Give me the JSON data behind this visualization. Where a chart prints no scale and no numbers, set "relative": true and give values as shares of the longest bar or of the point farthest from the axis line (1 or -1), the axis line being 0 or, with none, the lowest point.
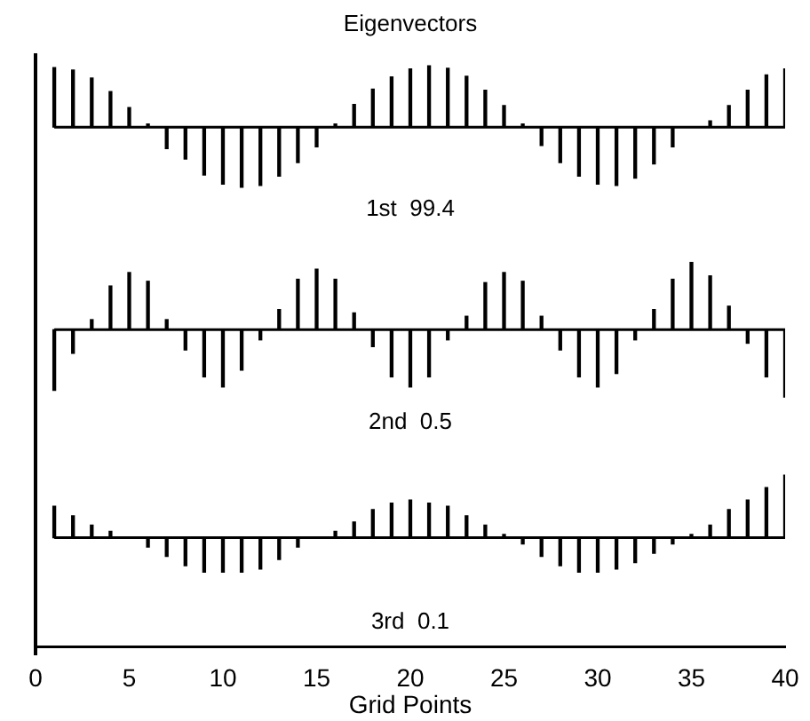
{
  "chart_data": [
    {
      "type": "bar",
      "title": "Eigenvectors",
      "x": [
        1,
        2,
        3,
        4,
        5,
        6,
        7,
        8,
        9,
        10,
        11,
        12,
        13,
        14,
        15,
        16,
        17,
        18,
        19,
        20,
        21,
        22,
        23,
        24,
        25,
        26,
        27,
        28,
        29,
        30,
        31,
        32,
        33,
        34,
        35,
        36,
        37,
        38,
        39,
        40
      ],
      "values": [
        0.97,
        0.93,
        0.8,
        0.58,
        0.32,
        0.05,
        -0.35,
        -0.52,
        -0.78,
        -0.93,
        -0.98,
        -0.95,
        -0.8,
        -0.58,
        -0.32,
        0.05,
        0.37,
        0.62,
        0.82,
        0.95,
        1.0,
        0.96,
        0.83,
        0.6,
        0.35,
        0.05,
        -0.3,
        -0.58,
        -0.8,
        -0.93,
        -0.95,
        -0.83,
        -0.6,
        -0.32,
        null,
        0.1,
        0.35,
        0.6,
        0.85,
        0.95
      ],
      "color": "#000000",
      "relative": true,
      "xlim": [
        0,
        40
      ],
      "tick_labels": false,
      "annotations": [
        "1st  99.4"
      ]
    },
    {
      "type": "bar",
      "x": [
        1,
        2,
        3,
        4,
        5,
        6,
        7,
        8,
        9,
        10,
        11,
        12,
        13,
        14,
        15,
        16,
        17,
        18,
        19,
        20,
        21,
        22,
        23,
        24,
        25,
        26,
        27,
        28,
        29,
        30,
        31,
        32,
        33,
        34,
        35,
        36,
        37,
        38,
        39,
        40
      ],
      "values": [
        -0.9,
        -0.35,
        0.15,
        0.65,
        0.85,
        0.72,
        0.15,
        -0.3,
        -0.7,
        -0.85,
        -0.6,
        -0.15,
        0.3,
        0.75,
        0.9,
        0.75,
        0.25,
        -0.25,
        -0.7,
        -0.85,
        -0.7,
        -0.15,
        0.2,
        0.7,
        0.85,
        0.72,
        0.2,
        -0.3,
        -0.7,
        -0.85,
        -0.65,
        -0.15,
        0.3,
        0.75,
        1.0,
        0.8,
        0.35,
        -0.2,
        -0.7,
        -1.0
      ],
      "color": "#000000",
      "relative": true,
      "xlim": [
        0,
        40
      ],
      "tick_labels": false,
      "annotations": [
        "2nd  0.5"
      ]
    },
    {
      "type": "bar",
      "xlabel": "Grid Points",
      "x": [
        1,
        2,
        3,
        4,
        5,
        6,
        7,
        8,
        9,
        10,
        11,
        12,
        13,
        14,
        15,
        16,
        17,
        18,
        19,
        20,
        21,
        22,
        23,
        24,
        25,
        26,
        27,
        28,
        29,
        30,
        31,
        32,
        33,
        34,
        35,
        36,
        37,
        38,
        39,
        40
      ],
      "values": [
        0.5,
        0.35,
        0.2,
        0.1,
        0,
        -0.15,
        -0.3,
        -0.45,
        -0.55,
        -0.55,
        -0.55,
        -0.5,
        -0.35,
        -0.15,
        0,
        0.1,
        0.25,
        0.45,
        0.55,
        0.6,
        0.55,
        0.5,
        0.35,
        0.2,
        0.05,
        -0.1,
        -0.3,
        -0.45,
        -0.55,
        -0.55,
        -0.5,
        -0.4,
        -0.25,
        -0.1,
        0.05,
        0.2,
        0.45,
        0.6,
        0.8,
        1.0
      ],
      "color": "#000000",
      "relative": true,
      "xlim": [
        0,
        40
      ],
      "xticks": [
        0,
        5,
        10,
        15,
        20,
        25,
        30,
        35,
        40
      ],
      "tick_labels": "x",
      "annotations": [
        "3rd  0.1"
      ]
    }
  ]
}
